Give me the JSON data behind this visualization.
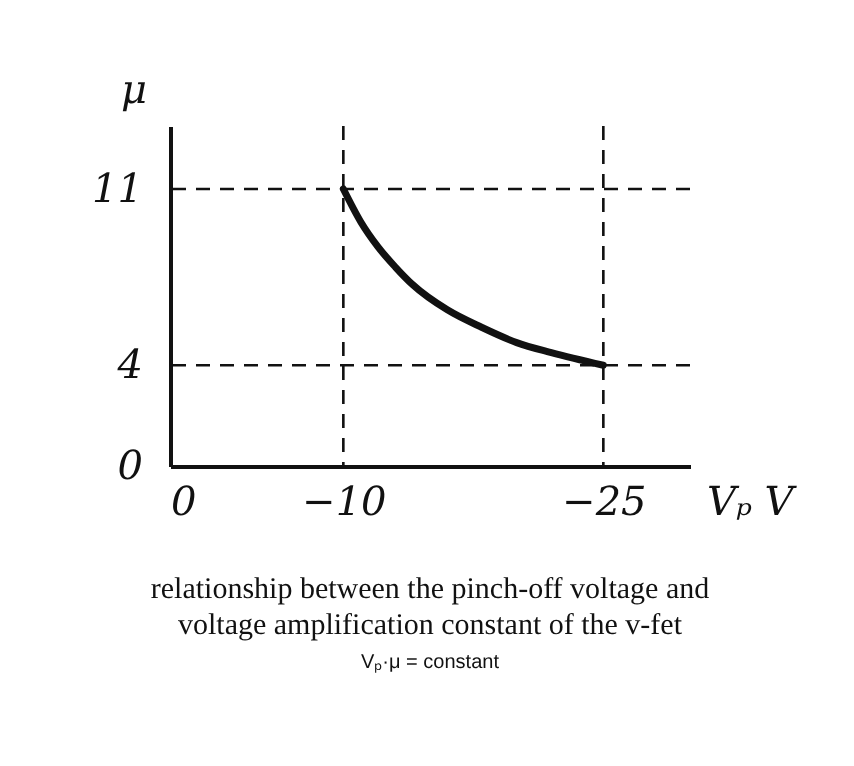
{
  "chart_data": {
    "type": "line",
    "xlabel": "Vₚ V",
    "ylabel": "μ",
    "x": [
      -10,
      -11,
      -12,
      -13,
      -14,
      -16,
      -18,
      -20,
      -22,
      -25
    ],
    "series": [
      {
        "color": "#111111",
        "values": [
          11,
          9.7,
          8.7,
          7.9,
          7.2,
          6.2,
          5.5,
          4.9,
          4.5,
          4
        ]
      }
    ],
    "xlim": [
      0,
      -30
    ],
    "xticks": [
      0,
      -10,
      -25
    ],
    "ylim": [
      0,
      13.5
    ],
    "yticks": [
      0,
      4,
      11
    ],
    "grid": false,
    "marker": "none",
    "line_style": "solid",
    "ref_lines": [
      {
        "axis": "y",
        "value": 11,
        "line_style": "dashed",
        "color": "#111111"
      },
      {
        "axis": "y",
        "value": 4,
        "line_style": "dashed",
        "color": "#111111"
      },
      {
        "axis": "x",
        "value": -10,
        "line_style": "dashed",
        "color": "#111111"
      },
      {
        "axis": "x",
        "value": -25,
        "line_style": "dashed",
        "color": "#111111"
      }
    ],
    "annotations": [
      "relationship between the pinch-off voltage and",
      "voltage amplification constant of the v-fet",
      "Vₚ·μ = constant"
    ]
  }
}
